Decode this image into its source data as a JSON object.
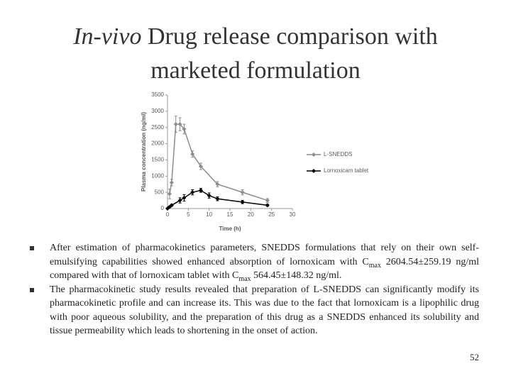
{
  "title": {
    "italic": "In-vivo",
    "rest": " Drug release comparison with marketed formulation"
  },
  "chart_data": {
    "type": "line",
    "xlabel": "Time (h)",
    "ylabel": "Plasma concentration (ng/ml)",
    "xlim": [
      0,
      30
    ],
    "xticks": [
      0,
      5,
      10,
      15,
      20,
      25,
      30
    ],
    "ylim": [
      0,
      3500
    ],
    "yticks": [
      0,
      500,
      1000,
      1500,
      2000,
      2500,
      3000,
      3500
    ],
    "series": [
      {
        "name": "L-SNEDDS",
        "color": "#8c8c8c",
        "x": [
          0.5,
          1,
          2,
          3,
          4,
          6,
          8,
          12,
          18,
          24
        ],
        "values": [
          450,
          800,
          2600,
          2600,
          2450,
          1680,
          1300,
          750,
          500,
          250
        ],
        "errors": [
          150,
          100,
          250,
          200,
          150,
          100,
          100,
          80,
          80,
          60
        ]
      },
      {
        "name": "Lornoxicam tablet",
        "color": "#000000",
        "x": [
          0,
          0.5,
          1,
          3,
          4,
          6,
          8,
          10,
          12,
          18,
          24
        ],
        "values": [
          0,
          50,
          100,
          250,
          330,
          500,
          560,
          400,
          300,
          200,
          100
        ],
        "errors": [
          0,
          20,
          30,
          80,
          100,
          80,
          60,
          80,
          60,
          50,
          30
        ]
      }
    ]
  },
  "bullets": [
    [
      "After estimation of pharmacokinetics parameters, SNEDDS formulations that rely on their own self-emulsifying capabilities showed enhanced absorption of lornoxicam with C",
      "max",
      " 2604.54±259.19 ng/ml compared with that of lornoxicam tablet with C",
      "max",
      " 564.45±148.32 ng/ml."
    ],
    [
      "The pharmacokinetic study results revealed that preparation of L-SNEDDS can significantly modify its pharmacokinetic profile and can increase its. This was due to the fact that lornoxicam is a lipophilic drug with poor aqueous solubility, and the preparation of this drug as a SNEDDS enhanced its solubility and tissue permeability which leads to shortening in the onset of action."
    ]
  ],
  "page_number": "52"
}
